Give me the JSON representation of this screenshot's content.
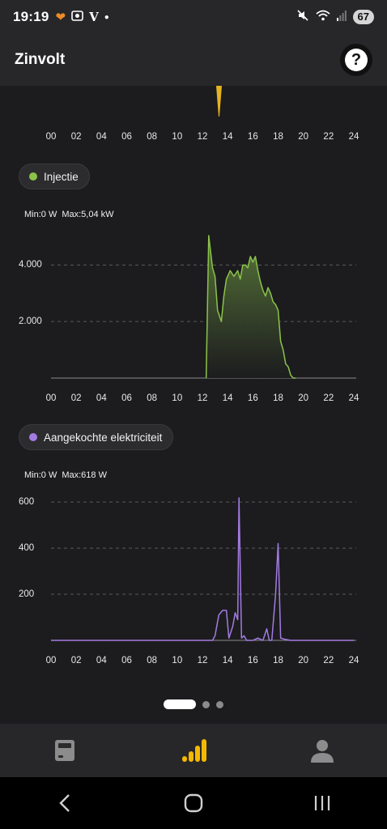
{
  "status_bar": {
    "time": "19:19",
    "battery": "67",
    "icons_left": [
      "heart-app-icon",
      "camera-app-icon",
      "v-app-icon",
      "dot-icon"
    ],
    "icons_right": [
      "mute-icon",
      "wifi-icon",
      "signal-icon"
    ]
  },
  "header": {
    "title": "Zinvolt",
    "help_label": "?"
  },
  "x_ticks": [
    "00",
    "02",
    "04",
    "06",
    "08",
    "10",
    "12",
    "14",
    "16",
    "18",
    "20",
    "22",
    "24"
  ],
  "charts": {
    "top": {
      "color": "#e6b422"
    },
    "injectie": {
      "chip_label": "Injectie",
      "color": "#8bc34a",
      "min_label": "Min:0 W",
      "max_label": "Max:5,04 kW",
      "y_ticks": [
        "4.000",
        "2.000"
      ]
    },
    "aangekocht": {
      "chip_label": "Aangekochte elektriciteit",
      "color": "#a37be3",
      "min_label": "Min:0 W",
      "max_label": "Max:618 W",
      "y_ticks": [
        "600",
        "400",
        "200"
      ]
    }
  },
  "chart_data": [
    {
      "type": "area",
      "title": "Injectie",
      "xlabel": "",
      "ylabel": "",
      "xlim": [
        0,
        24
      ],
      "ylim": [
        0,
        5040
      ],
      "y_unit": "W",
      "series": [
        {
          "name": "Injectie",
          "x": [
            12.3,
            12.5,
            12.8,
            13.0,
            13.2,
            13.5,
            13.7,
            13.9,
            14.2,
            14.5,
            14.8,
            15.0,
            15.2,
            15.4,
            15.6,
            15.8,
            16.0,
            16.2,
            16.4,
            16.6,
            16.8,
            17.0,
            17.2,
            17.4,
            17.6,
            17.8,
            18.0,
            18.2,
            18.4,
            18.6,
            18.8,
            19.0,
            19.2,
            19.4
          ],
          "y": [
            0,
            5040,
            3900,
            3600,
            2400,
            2000,
            2900,
            3500,
            3800,
            3600,
            3800,
            3500,
            4000,
            4000,
            3900,
            4300,
            4100,
            4300,
            3800,
            3400,
            3100,
            2900,
            3200,
            3000,
            2700,
            2600,
            2400,
            1300,
            1000,
            500,
            400,
            100,
            0,
            0
          ]
        }
      ]
    },
    {
      "type": "line",
      "title": "Aangekochte elektriciteit",
      "xlabel": "",
      "ylabel": "",
      "xlim": [
        0,
        24
      ],
      "ylim": [
        0,
        618
      ],
      "y_unit": "W",
      "series": [
        {
          "name": "Aangekochte elektriciteit",
          "x": [
            0,
            12.8,
            13.0,
            13.3,
            13.6,
            13.9,
            14.1,
            14.4,
            14.6,
            14.8,
            14.9,
            15.1,
            15.3,
            15.5,
            15.7,
            16.0,
            16.4,
            16.8,
            17.1,
            17.3,
            17.5,
            17.8,
            18.0,
            18.2,
            18.5,
            19.0,
            24
          ],
          "y": [
            0,
            0,
            20,
            110,
            130,
            130,
            10,
            60,
            120,
            90,
            618,
            10,
            20,
            0,
            0,
            0,
            10,
            0,
            50,
            0,
            0,
            200,
            420,
            10,
            5,
            0,
            0
          ]
        }
      ]
    }
  ],
  "pager": {
    "active_index": 0,
    "count": 3
  },
  "bottom_nav": {
    "items": [
      "meter-icon",
      "stats-icon",
      "user-icon"
    ],
    "active": "stats-icon",
    "active_color": "#f5b800"
  }
}
